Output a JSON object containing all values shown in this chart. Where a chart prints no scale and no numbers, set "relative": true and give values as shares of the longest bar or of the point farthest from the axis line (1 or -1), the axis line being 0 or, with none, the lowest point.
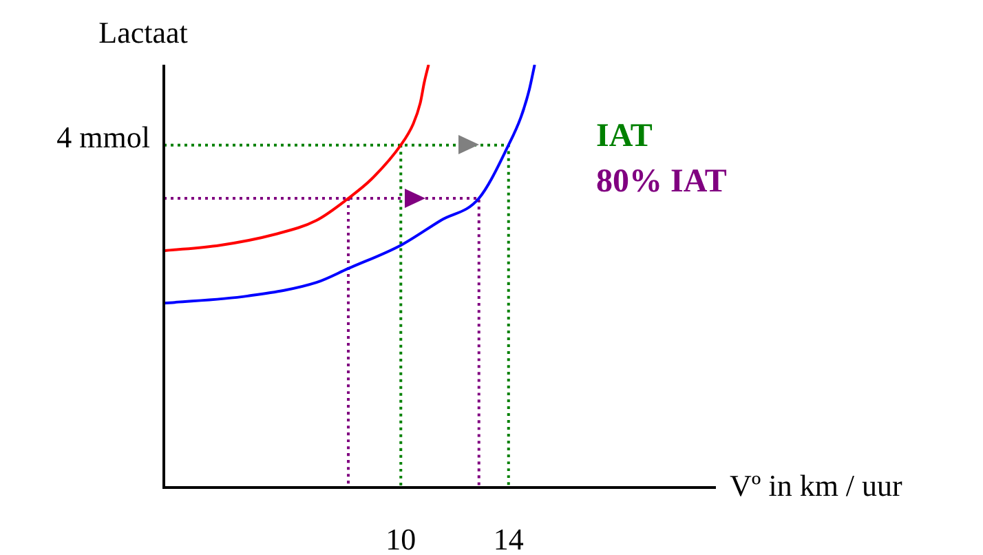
{
  "chart_data": {
    "type": "line",
    "relative": true,
    "ylabel": "Lactaat",
    "xlabel": "Vº in km / uur",
    "xlim": [
      1.2,
      21.7
    ],
    "xticks": [
      10,
      14
    ],
    "marker": "none",
    "legend": "right",
    "annotations": [
      "4 mmol"
    ],
    "series": [
      {
        "color": "#ff0000",
        "line_style": "solid",
        "x": [
          1.2,
          3.28,
          5.33,
          6.87,
          8.05,
          8.92,
          10,
          10.46,
          10.72,
          10.87,
          11.03
        ],
        "values": [
          0.56,
          0.573,
          0.599,
          0.632,
          0.684,
          0.73,
          0.81,
          0.86,
          0.909,
          0.958,
          1.0
        ]
      },
      {
        "color": "#0000ff",
        "line_style": "solid",
        "x": [
          1.2,
          4.31,
          6.87,
          8.05,
          10,
          11.49,
          12.9,
          14,
          14.46,
          14.77,
          14.97
        ],
        "values": [
          0.436,
          0.453,
          0.485,
          0.518,
          0.573,
          0.632,
          0.684,
          0.81,
          0.876,
          0.941,
          1.0
        ]
      },
      {
        "name": "IAT",
        "color": "#008000",
        "line_style": "dotted",
        "x": [
          1.2,
          14,
          14,
          null,
          10,
          10
        ],
        "values": [
          0.81,
          0.81,
          0,
          null,
          0.81,
          0
        ]
      },
      {
        "name": "80% IAT",
        "color": "#800080",
        "line_style": "dotted",
        "x": [
          1.2,
          12.9,
          12.9,
          null,
          8.05,
          8.05
        ],
        "values": [
          0.684,
          0.684,
          0,
          null,
          0.684,
          0
        ]
      }
    ]
  }
}
